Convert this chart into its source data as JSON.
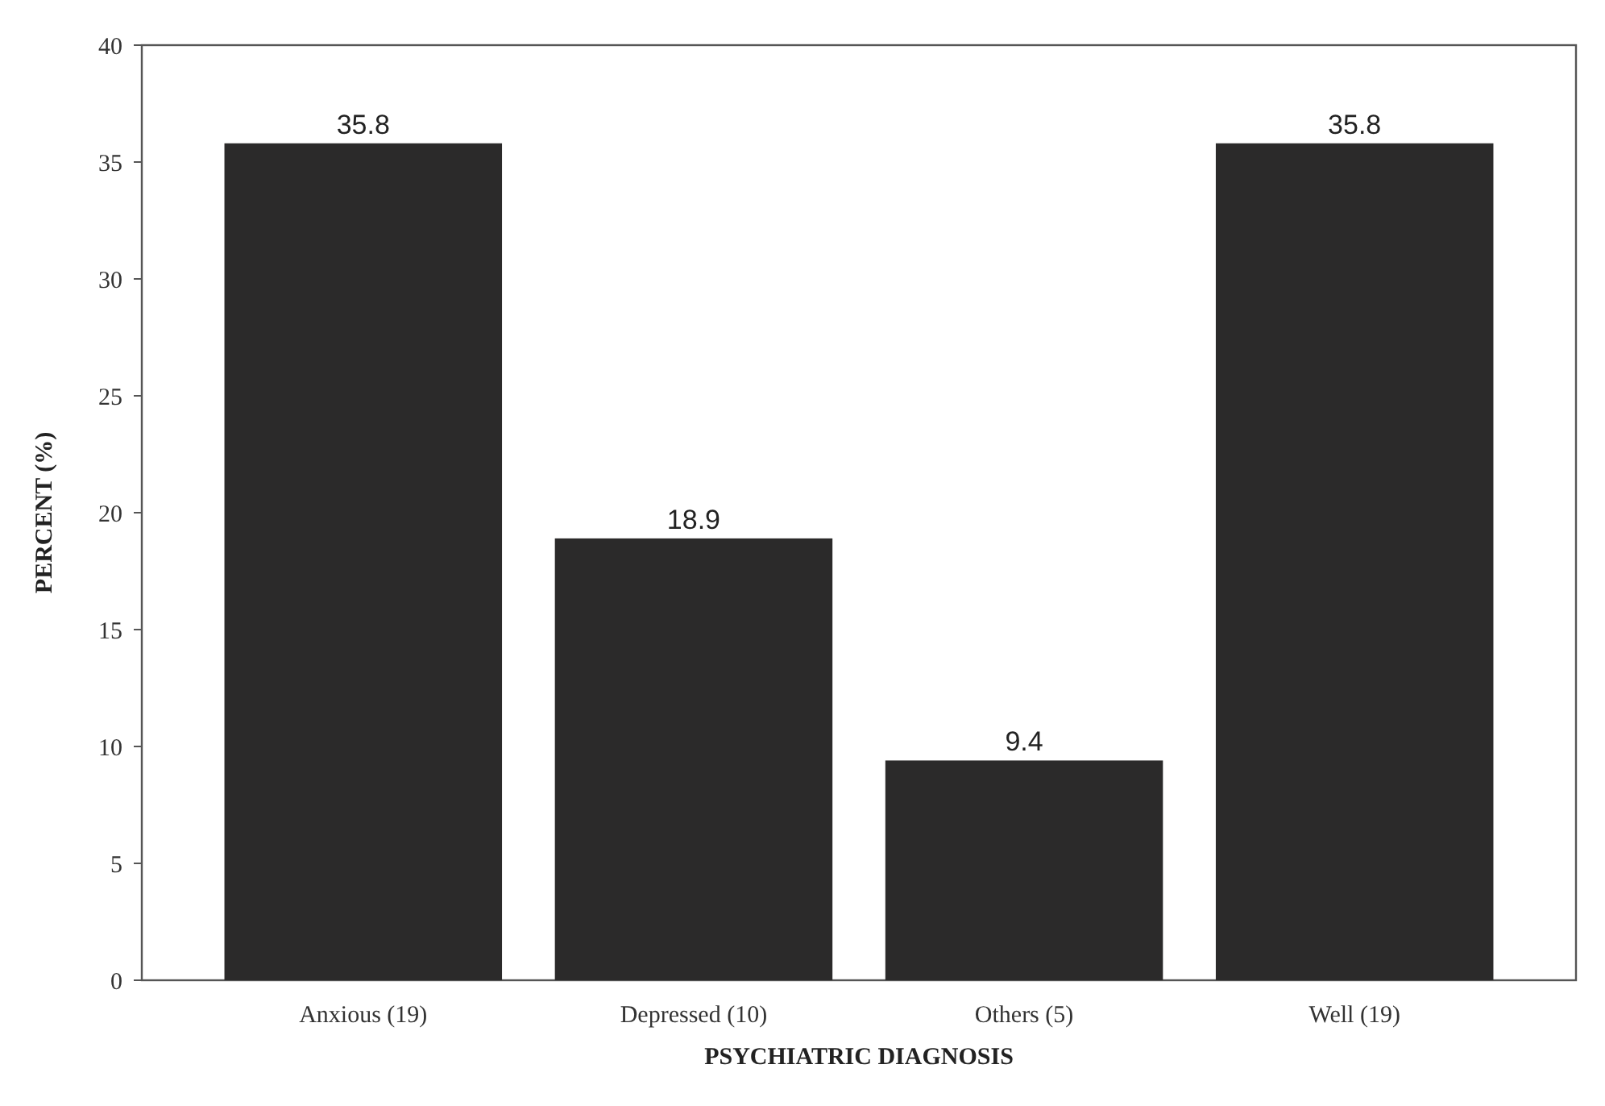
{
  "chart_data": {
    "type": "bar",
    "xlabel": "PSYCHIATRIC DIAGNOSIS",
    "ylabel": "PERCENT (%)",
    "categories": [
      "Anxious (19)",
      "Depressed (10)",
      "Others (5)",
      "Well (19)"
    ],
    "values": [
      35.8,
      18.9,
      9.4,
      35.8
    ],
    "color": "#2b2a2a",
    "data_labels": true,
    "ylim": [
      0,
      40
    ],
    "yticks": [
      0,
      5,
      10,
      15,
      20,
      25,
      30,
      35,
      40
    ],
    "grid": false
  }
}
